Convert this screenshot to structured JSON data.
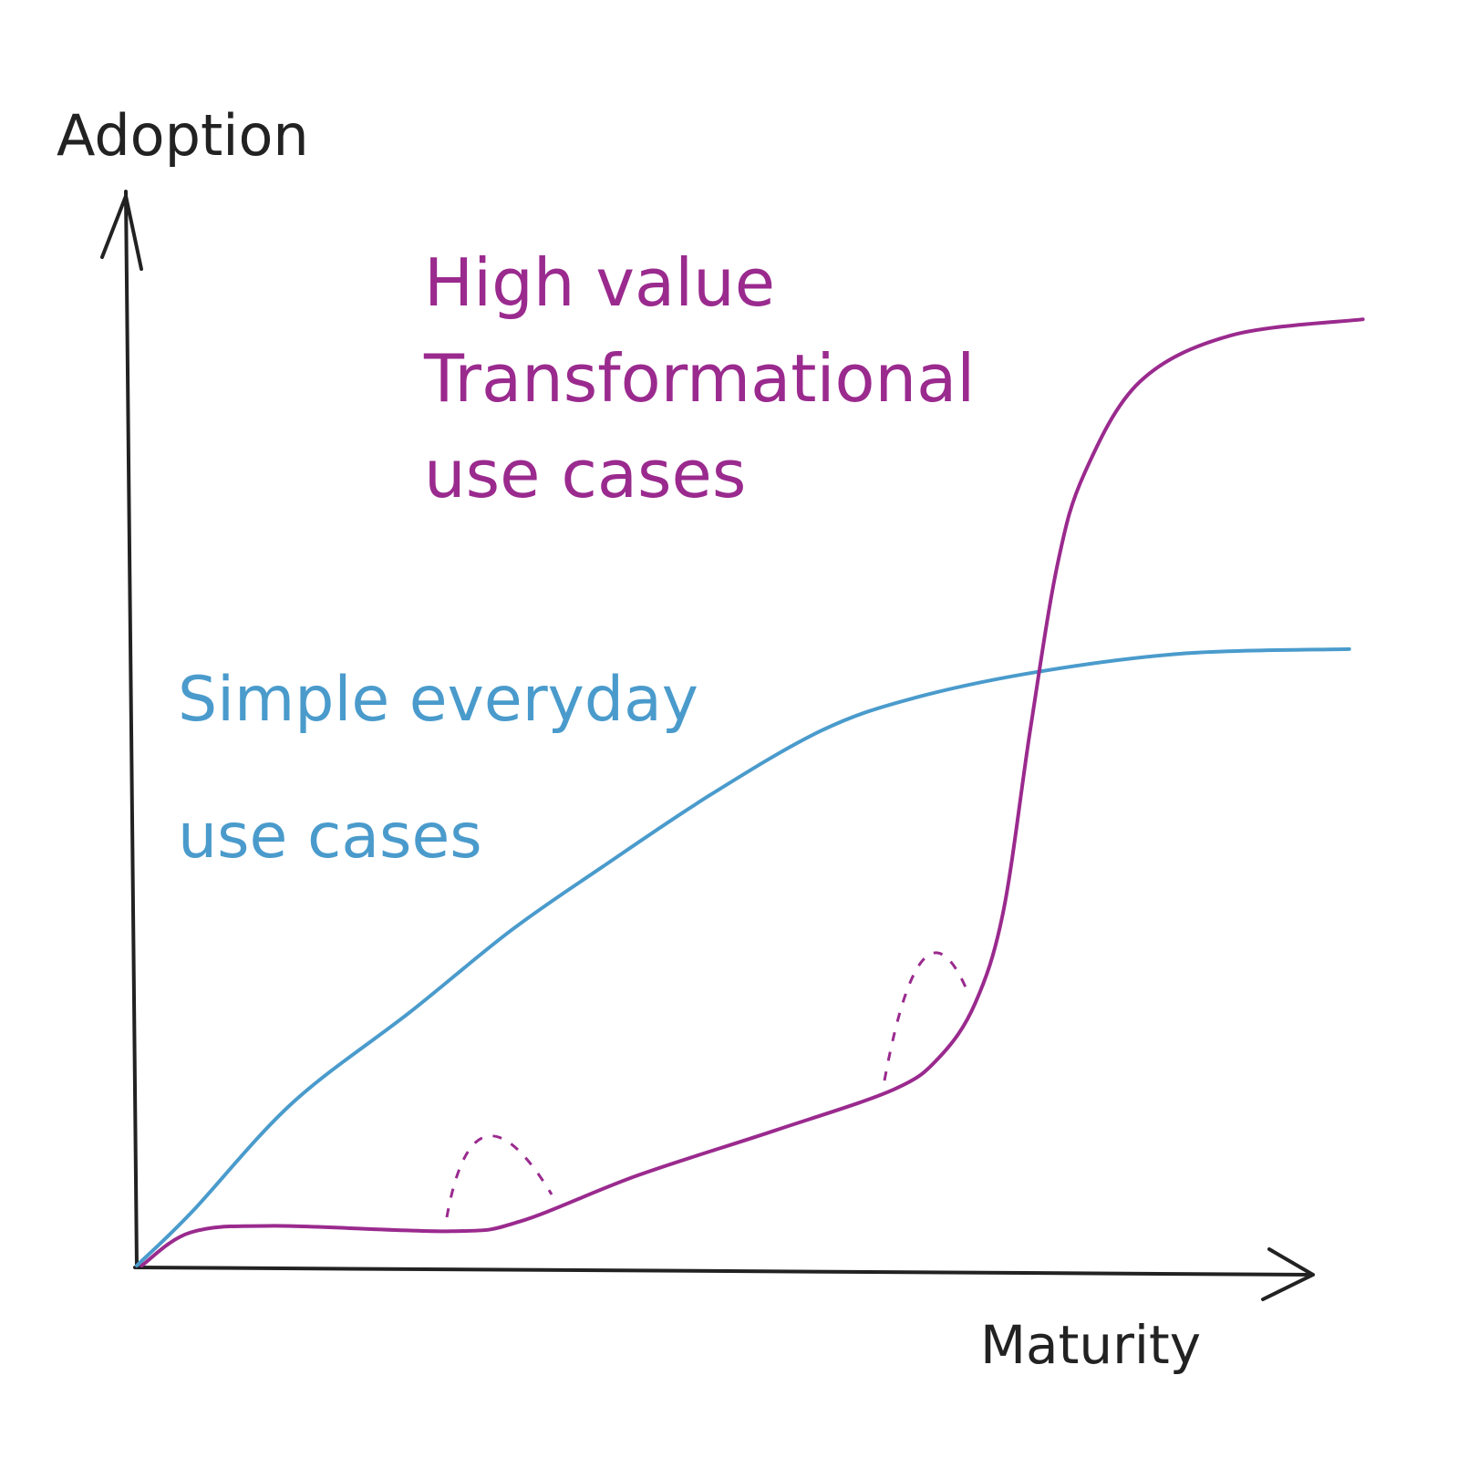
{
  "chart_data": {
    "type": "line",
    "y_label": "Adoption",
    "x_label": "Maturity",
    "xlim": [
      0,
      100
    ],
    "ylim": [
      0,
      100
    ],
    "series": [
      {
        "label_lines": [
          "Simple everyday",
          "use cases"
        ],
        "color": "#4a9bcc",
        "x": [
          0,
          4.4,
          12.6,
          22.2,
          30.4,
          37.8,
          46.7,
          55.6,
          63,
          73.3,
          85.2,
          98.5
        ],
        "values": [
          0,
          4.9,
          15.1,
          23.6,
          31.2,
          37.1,
          43.9,
          49.8,
          52.8,
          55.3,
          57,
          57.4
        ]
      },
      {
        "label_lines": [
          "High value",
          "Transformational",
          "use cases"
        ],
        "color": "#9a2a8e",
        "x": [
          0.4,
          4.4,
          11.1,
          25.6,
          31.1,
          40.7,
          51.9,
          61.5,
          65.2,
          68.1,
          70.4,
          72.6,
          74.8,
          77,
          81.5,
          88.9,
          99.6
        ],
        "values": [
          0,
          3.1,
          3.7,
          3.2,
          4.1,
          8.4,
          12.6,
          16.4,
          19.4,
          24.4,
          33,
          50,
          65.3,
          73.8,
          82.3,
          86.6,
          88.1
        ]
      }
    ]
  }
}
